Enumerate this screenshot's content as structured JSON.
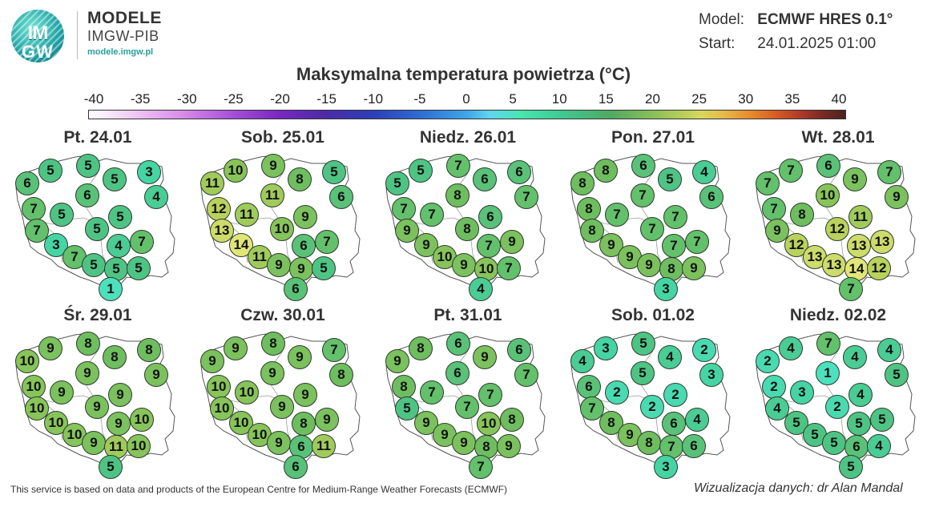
{
  "logo": {
    "circle_text_top": "IM",
    "circle_text_bottom": "GW",
    "brand": "MODELE",
    "sub": "IMGW-PIB",
    "url": "modele.imgw.pl"
  },
  "model": {
    "label": "Model:",
    "value": "ECMWF HRES 0.1°"
  },
  "start": {
    "label": "Start:",
    "value": "24.01.2025 01:00"
  },
  "title": "Maksymalna temperatura powietrza (°C)",
  "colorbar": {
    "ticks": [
      "-40",
      "-35",
      "-30",
      "-25",
      "-20",
      "-15",
      "-10",
      "-5",
      "0",
      "5",
      "10",
      "15",
      "20",
      "25",
      "30",
      "35",
      "40"
    ],
    "min": -40,
    "max": 40
  },
  "panels": [
    {
      "label": "Pt. 24.01",
      "values": [
        6,
        5,
        5,
        5,
        3,
        4,
        7,
        6,
        5,
        5,
        7,
        5,
        3,
        4,
        7,
        7,
        5,
        5,
        5,
        1
      ]
    },
    {
      "label": "Sob. 25.01",
      "values": [
        11,
        10,
        9,
        8,
        5,
        6,
        12,
        11,
        11,
        9,
        13,
        10,
        14,
        6,
        7,
        11,
        9,
        9,
        5,
        6
      ]
    },
    {
      "label": "Niedz. 26.01",
      "values": [
        5,
        5,
        7,
        6,
        6,
        7,
        7,
        8,
        7,
        6,
        9,
        8,
        9,
        7,
        9,
        10,
        9,
        10,
        7,
        4
      ]
    },
    {
      "label": "Pon. 27.01",
      "values": [
        8,
        8,
        6,
        5,
        4,
        6,
        8,
        7,
        7,
        7,
        8,
        7,
        9,
        7,
        7,
        9,
        9,
        8,
        9,
        3
      ]
    },
    {
      "label": "Wt. 28.01",
      "values": [
        7,
        7,
        6,
        9,
        7,
        9,
        7,
        10,
        8,
        11,
        9,
        12,
        12,
        13,
        13,
        13,
        13,
        14,
        12,
        7
      ]
    },
    {
      "label": "Śr. 29.01",
      "values": [
        10,
        9,
        8,
        8,
        8,
        9,
        10,
        9,
        9,
        9,
        10,
        9,
        10,
        9,
        10,
        10,
        9,
        11,
        10,
        5
      ]
    },
    {
      "label": "Czw. 30.01",
      "values": [
        9,
        9,
        8,
        9,
        7,
        8,
        10,
        9,
        10,
        9,
        10,
        9,
        10,
        8,
        9,
        10,
        9,
        6,
        11,
        6
      ]
    },
    {
      "label": "Pt. 31.01",
      "values": [
        9,
        8,
        6,
        9,
        6,
        7,
        8,
        6,
        7,
        7,
        5,
        7,
        9,
        10,
        8,
        9,
        9,
        8,
        9,
        7
      ]
    },
    {
      "label": "Sob. 01.02",
      "values": [
        4,
        3,
        5,
        4,
        2,
        3,
        6,
        5,
        2,
        2,
        7,
        2,
        8,
        6,
        4,
        9,
        8,
        7,
        6,
        3
      ]
    },
    {
      "label": "Niedz. 02.02",
      "values": [
        2,
        4,
        7,
        4,
        4,
        5,
        2,
        1,
        3,
        4,
        4,
        2,
        5,
        5,
        5,
        5,
        5,
        6,
        4,
        5
      ]
    }
  ],
  "footer": {
    "left": "This service is based on data and products of the European Centre for Medium-Range Weather Forecasts (ECMWF)",
    "right": "Wizualizacja danych: dr Alan Mandal"
  }
}
